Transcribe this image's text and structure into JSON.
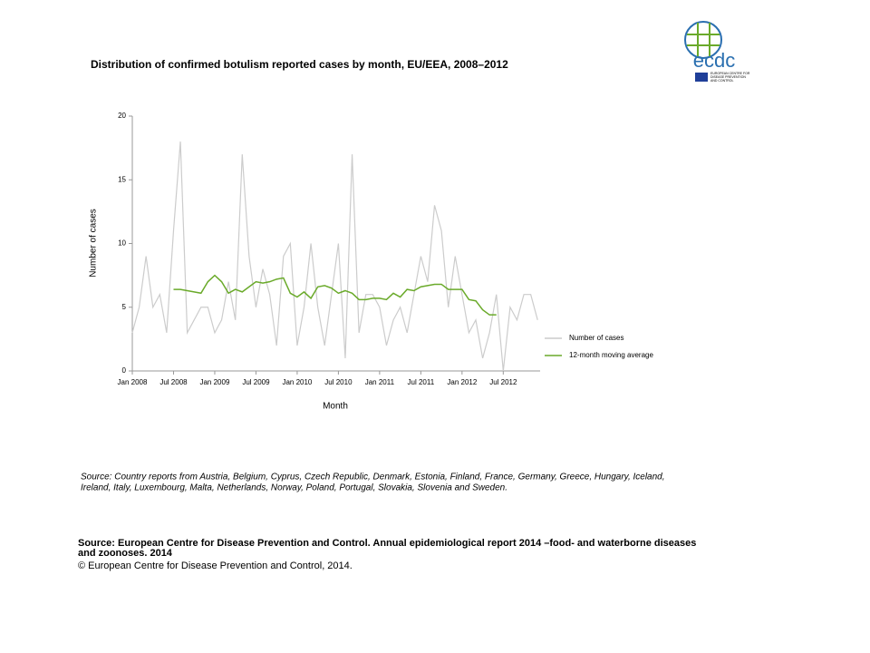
{
  "chart_data": {
    "type": "line",
    "title": "Distribution  of confirmed  botulism  reported cases by month,  EU/EEA,  2008–2012",
    "xlabel": "Month",
    "ylabel": "Number of cases",
    "categories": [
      "Jan 2008",
      null,
      null,
      null,
      null,
      null,
      "Jul 2008",
      null,
      null,
      null,
      null,
      null,
      "Jan 2009",
      null,
      null,
      null,
      null,
      null,
      "Jul 2009",
      null,
      null,
      null,
      null,
      null,
      "Jan 2010",
      null,
      null,
      null,
      null,
      null,
      "Jul 2010",
      null,
      null,
      null,
      null,
      null,
      "Jan 2011",
      null,
      null,
      null,
      null,
      null,
      "Jul 2011",
      null,
      null,
      null,
      null,
      null,
      "Jan 2012",
      null,
      null,
      null,
      null,
      null,
      "Jul 2012",
      null,
      null,
      null,
      null,
      null
    ],
    "series": [
      {
        "name": "Number of cases",
        "color": "#cccccc",
        "values": [
          3,
          5,
          9,
          5,
          6,
          3,
          11,
          18,
          3,
          4,
          5,
          5,
          3,
          4,
          7,
          4,
          17,
          9,
          5,
          8,
          6,
          2,
          9,
          10,
          2,
          5,
          10,
          5,
          2,
          6,
          10,
          1,
          17,
          3,
          6,
          6,
          5,
          2,
          4,
          5,
          3,
          6,
          9,
          7,
          13,
          11,
          5,
          9,
          6,
          3,
          4,
          1,
          3,
          6,
          0,
          5,
          4,
          6,
          6,
          4
        ]
      },
      {
        "name": "12-month moving average",
        "color": "#6aaa2a",
        "values": [
          null,
          null,
          null,
          null,
          null,
          null,
          6.4,
          6.4,
          6.3,
          6.2,
          6.1,
          7.0,
          7.5,
          7.0,
          6.1,
          6.4,
          6.2,
          6.6,
          7.0,
          6.9,
          7.0,
          7.2,
          7.3,
          6.1,
          5.8,
          6.2,
          5.7,
          6.6,
          6.7,
          6.5,
          6.1,
          6.3,
          6.1,
          5.6,
          5.6,
          5.7,
          5.7,
          5.6,
          6.1,
          5.8,
          6.4,
          6.3,
          6.6,
          6.7,
          6.8,
          6.8,
          6.4,
          6.4,
          6.4,
          5.6,
          5.5,
          4.8,
          4.4,
          4.4,
          null,
          null,
          null,
          null,
          null,
          null
        ]
      }
    ],
    "ylim": [
      0,
      20
    ],
    "yticks": [
      0,
      5,
      10,
      15,
      20
    ],
    "grid": false,
    "legend": "right"
  },
  "source_note": [
    "Source: Country reports from Austria, Belgium, Cyprus, Czech Republic, Denmark, Estonia, Finland, France, Germany, Greece, Hungary, Iceland,",
    "Ireland, Italy, Luxembourg, Malta, Netherlands, Norway, Poland, Portugal, Slovakia, Slovenia and Sweden."
  ],
  "footer": {
    "source": [
      "Source: European Centre for Disease Prevention and Control.  Annual epidemiological report 2014 –food- and waterborne diseases",
      "and zoonoses. 2014"
    ],
    "copyright": "© European Centre for Disease Prevention and Control, 2014."
  },
  "logo": {
    "name": "ecdc",
    "subtitle": [
      "EUROPEAN CENTRE FOR",
      "DISEASE PREVENTION",
      "AND CONTROL"
    ]
  }
}
